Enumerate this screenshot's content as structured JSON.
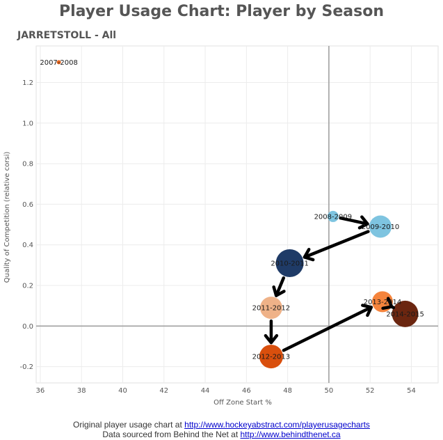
{
  "title": "Player Usage Chart: Player by Season",
  "subtitle": "JARRETSTOLL - All",
  "footer": {
    "line1_text": "Original player usage chart at ",
    "line1_link": "http://www.hockeyabstract.com/playerusagecharts",
    "line2_text": "Data sourced from Behind the Net at ",
    "line2_link": "http://www.behindthenet.ca"
  },
  "chart_data": {
    "type": "scatter",
    "xlabel": "Off Zone Start %",
    "ylabel": "Quality of Competition (relative corsi)",
    "xlim": [
      35.8,
      55.3
    ],
    "ylim": [
      -0.28,
      1.38
    ],
    "xticks": [
      36,
      38,
      40,
      42,
      44,
      46,
      48,
      50,
      52,
      54
    ],
    "yticks": [
      -0.2,
      0.0,
      0.2,
      0.4,
      0.6,
      0.8,
      1.0,
      1.2
    ],
    "reference_lines": {
      "x": 50,
      "y": 0
    },
    "grid": true,
    "points": [
      {
        "label": "2007-2008",
        "x": 36.9,
        "y": 1.3,
        "size": 3,
        "color": "#e8661f"
      },
      {
        "label": "2008-2009",
        "x": 50.2,
        "y": 0.54,
        "size": 8,
        "color": "#7ec4e0"
      },
      {
        "label": "2009-2010",
        "x": 52.5,
        "y": 0.49,
        "size": 16,
        "color": "#7ec4e0"
      },
      {
        "label": "2010-2011",
        "x": 48.1,
        "y": 0.31,
        "size": 20,
        "color": "#1f3b67"
      },
      {
        "label": "2011-2012",
        "x": 47.2,
        "y": 0.09,
        "size": 16,
        "color": "#efb288"
      },
      {
        "label": "2012-2013",
        "x": 47.2,
        "y": -0.15,
        "size": 17,
        "color": "#d94f0d"
      },
      {
        "label": "2013-2014",
        "x": 52.6,
        "y": 0.12,
        "size": 15,
        "color": "#f5843c"
      },
      {
        "label": "2014-2015",
        "x": 53.7,
        "y": 0.06,
        "size": 19,
        "color": "#6b2610"
      }
    ],
    "path": [
      "2008-2009",
      "2009-2010",
      "2010-2011",
      "2011-2012",
      "2012-2013",
      "2013-2014",
      "2014-2015"
    ],
    "path_end_arrow": true
  }
}
